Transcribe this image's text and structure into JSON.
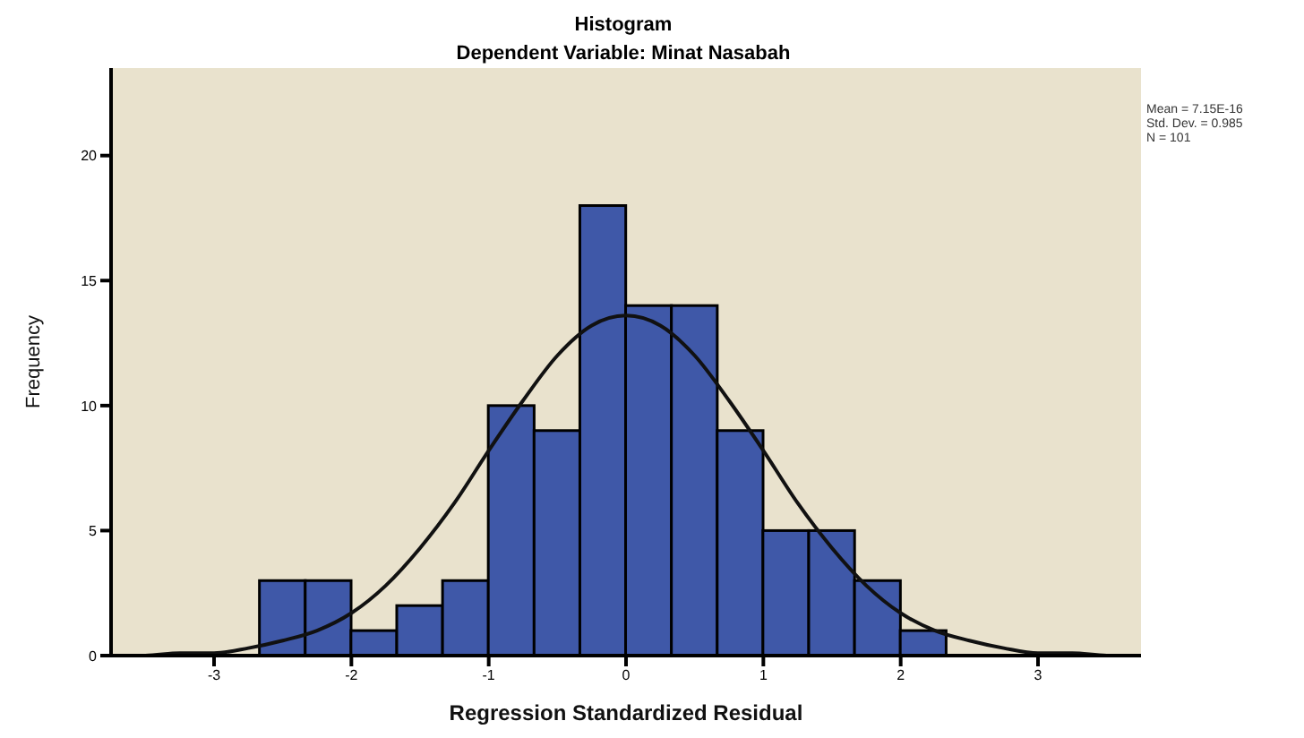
{
  "chart_data": {
    "type": "histogram",
    "title": "Histogram",
    "subtitle": "Dependent Variable: Minat Nasabah",
    "xlabel": "Regression Standardized Residual",
    "ylabel": "Frequency",
    "bins": [
      -2.667,
      -2.333,
      -2,
      -1.667,
      -1.333,
      -1,
      -0.667,
      -0.333,
      0,
      0.333,
      0.667,
      1,
      1.333,
      1.667,
      2,
      2.333
    ],
    "values": [
      3,
      3,
      1,
      2,
      3,
      10,
      9,
      18,
      14,
      14,
      9,
      5,
      5,
      3,
      1
    ],
    "color": "#3f58a8",
    "series": [
      {
        "type": "line",
        "color": "#111111",
        "x": [
          -3.75,
          -3.5,
          -3.25,
          -3,
          -2.75,
          -2.5,
          -2.25,
          -2,
          -1.75,
          -1.5,
          -1.25,
          -1,
          -0.75,
          -0.5,
          -0.25,
          0,
          0.25,
          0.5,
          0.75,
          1,
          1.25,
          1.5,
          1.75,
          2,
          2.25,
          2.5,
          2.75,
          3,
          3.25,
          3.5,
          3.75
        ],
        "values": [
          0,
          0,
          0.1,
          0.1,
          0.3,
          0.6,
          1,
          1.7,
          2.8,
          4.3,
          6.1,
          8.2,
          10.2,
          12,
          13.2,
          13.6,
          13.2,
          12,
          10.2,
          8.2,
          6.1,
          4.3,
          2.8,
          1.7,
          1,
          0.6,
          0.3,
          0.1,
          0.1,
          0,
          0
        ]
      }
    ],
    "xlim": [
      -3.75,
      3.75
    ],
    "xticks": [
      -3,
      -2,
      -1,
      0,
      1,
      2,
      3
    ],
    "ylim": [
      0,
      23.5
    ],
    "yticks": [
      0,
      5,
      10,
      15,
      20
    ],
    "grid": false,
    "annotations": [
      "Mean = 7.15E-16",
      "Std. Dev. = 0.985",
      "N = 101"
    ]
  }
}
